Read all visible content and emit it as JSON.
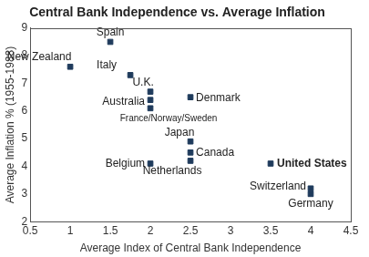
{
  "chart_data": {
    "type": "scatter",
    "title": "Central Bank Independence vs. Average Inflation",
    "x_label": "Average Index of Central Bank Independence",
    "y_label": "Average Inflation % (1955-1988)",
    "x": [
      1,
      1.5,
      1.75,
      2,
      2,
      2,
      2.5,
      2.5,
      2.5,
      2.5,
      2,
      3.5,
      4,
      4
    ],
    "values": [
      7.6,
      8.5,
      7.3,
      6.7,
      6.4,
      6.1,
      6.5,
      4.9,
      4.5,
      4.2,
      4.1,
      4.1,
      3.2,
      3.0
    ],
    "point_labels": [
      "New Zealand",
      "Spain",
      "Italy",
      "U.K.",
      "Australia",
      "France/Norway/Sweden",
      "Denmark",
      "Japan",
      "Canada",
      "Netherlands",
      "Belgium",
      "United States",
      "Switzerland",
      "Germany"
    ],
    "color": "#1f3b5c",
    "marker": "square",
    "xlim": [
      0.5,
      4.5
    ],
    "xticks": [
      0.5,
      1,
      1.5,
      2,
      2.5,
      3,
      3.5,
      4,
      4.5
    ],
    "ylim": [
      2,
      9
    ],
    "yticks": [
      2,
      3,
      4,
      5,
      6,
      7,
      8,
      9
    ],
    "grid": false
  }
}
